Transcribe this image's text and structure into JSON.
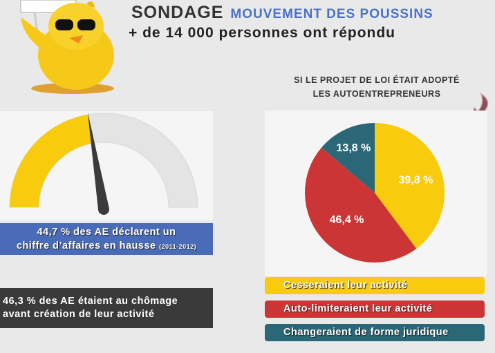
{
  "header": {
    "title": "SONDAGE",
    "subtitle": "MOUVEMENT DES POUSSINS",
    "respondents": "+ de 14 000 personnes ont répondu"
  },
  "gauge": {
    "value_percent": 44.7,
    "caption_line1": "44,7 % des AE déclarent un",
    "caption_line2": "chiffre d’affaires en hausse",
    "caption_years": "(2011-2012)",
    "colors": {
      "fill": "#f8cc0c",
      "rest": "#e4e4e4",
      "needle": "#3b3b3b"
    }
  },
  "stat2": {
    "line1": "46,3 % des AE étaient au chômage",
    "line2": "avant création de leur activité"
  },
  "chart_data": {
    "type": "pie",
    "title": "SI LE PROJET DE LOI ÉTAIT ADOPTÉ LES AUTOENTREPRENEURS",
    "title_line1": "SI LE PROJET DE LOI ÉTAIT ADOPTÉ",
    "title_line2": "LES AUTOENTREPRENEURS",
    "slices": [
      {
        "label": "Cesseraient leur activité",
        "value": 39.8,
        "text": "39,8 %",
        "color": "#f8cc0c"
      },
      {
        "label": "Auto-limiteraient leur activité",
        "value": 46.4,
        "text": "46,4 %",
        "color": "#cc3535"
      },
      {
        "label": "Changeraient de forme juridique",
        "value": 13.8,
        "text": "13,8 %",
        "color": "#2a6878"
      }
    ],
    "legend": "bottom"
  }
}
